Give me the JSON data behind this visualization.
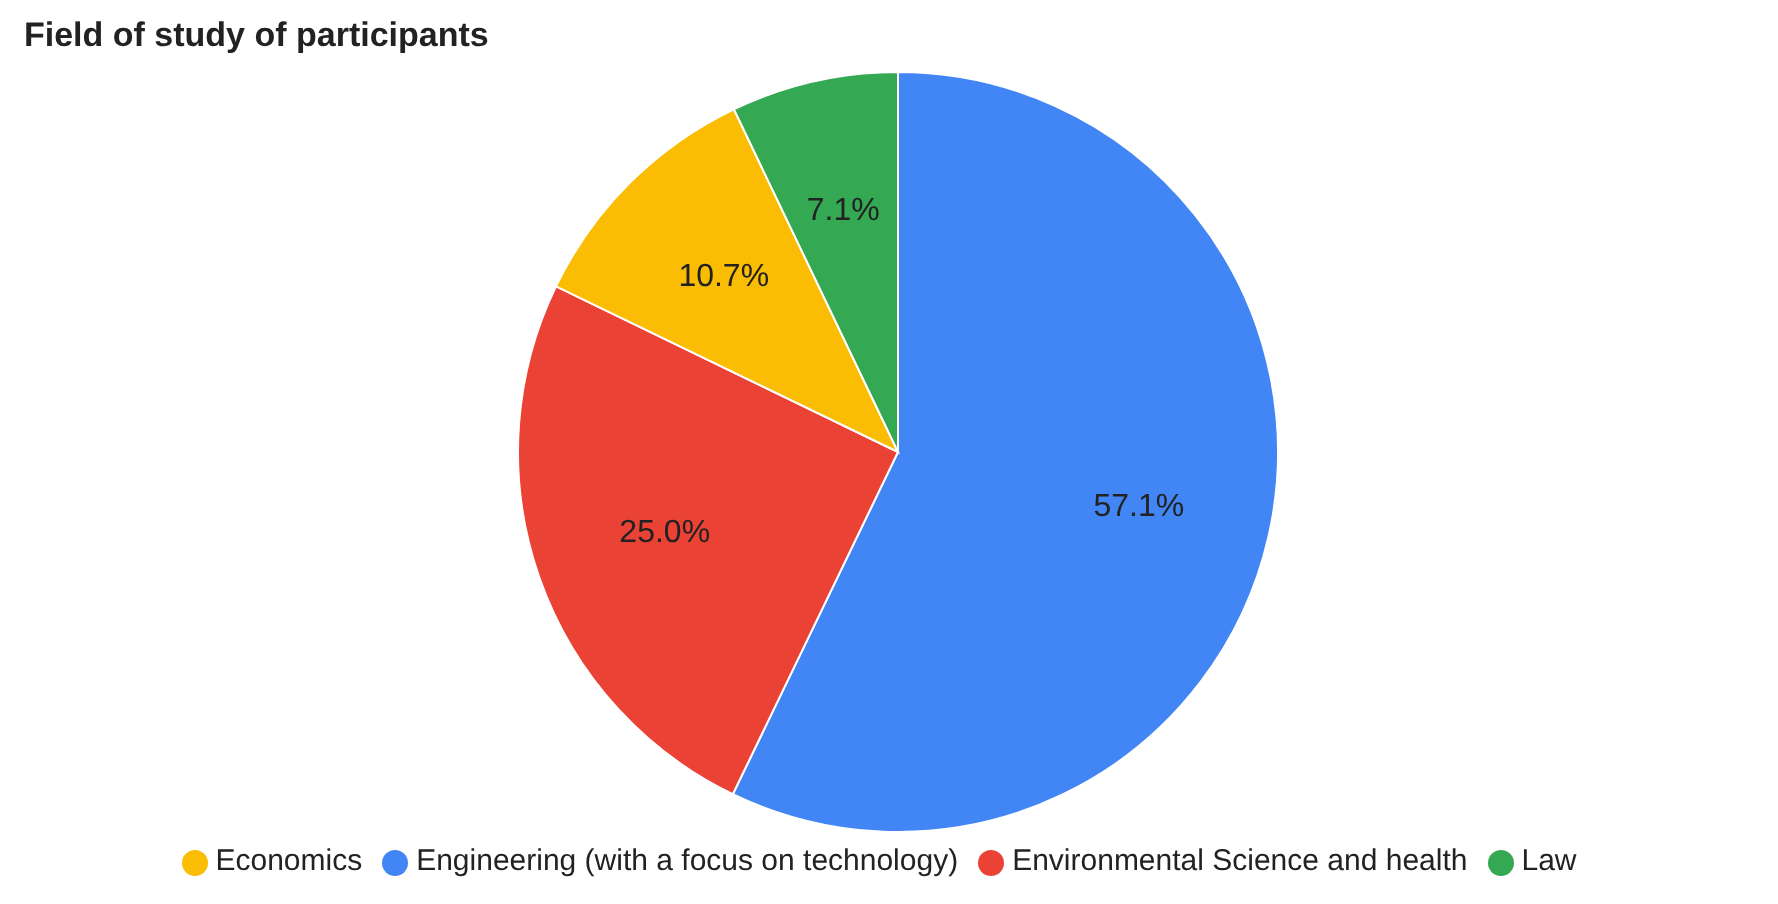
{
  "chart_data": {
    "type": "pie",
    "title": "Field of study of participants",
    "categories": [
      "Engineering (with a focus on technology)",
      "Environmental Science and health",
      "Economics",
      "Law"
    ],
    "values": [
      57.1,
      25.0,
      10.7,
      7.1
    ],
    "colors": [
      "#4285f4",
      "#ea4335",
      "#fbbc04",
      "#34a853"
    ],
    "value_labels": [
      "57.1%",
      "25.0%",
      "10.7%",
      "7.1%"
    ],
    "legend": "bottom"
  }
}
